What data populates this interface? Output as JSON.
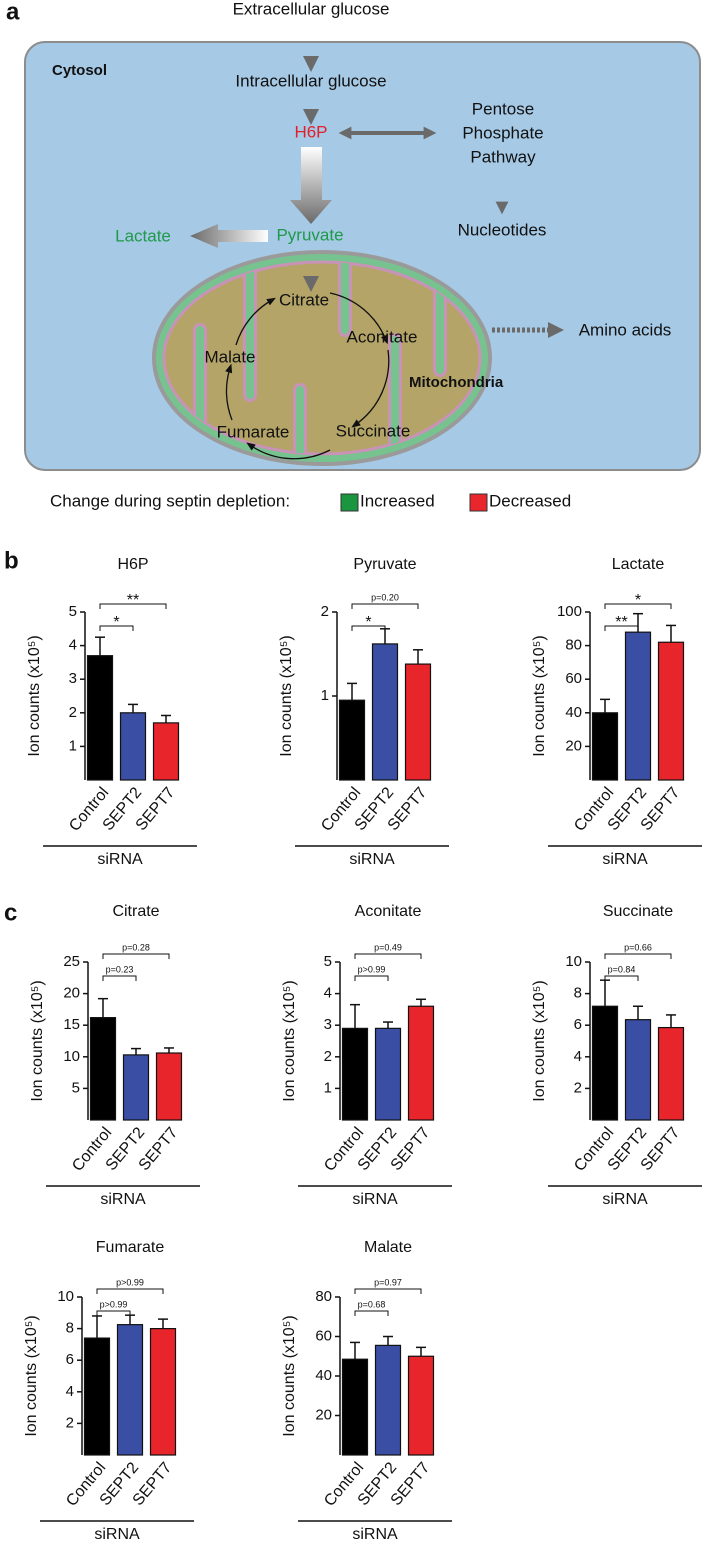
{
  "panel_labels": [
    "a",
    "b",
    "c"
  ],
  "diagram": {
    "cytosol_label": "Cytosol",
    "mitochondria_label": "Mitochondria",
    "nodes": [
      {
        "label": "Extracellular glucose"
      },
      {
        "label": "Intracellular glucose"
      },
      {
        "label": "H6P",
        "color": "#e0202a"
      },
      {
        "lines": [
          "Pentose",
          "Phosphate",
          "Pathway"
        ]
      },
      {
        "label": "Nucleotides"
      },
      {
        "label": "Lactate",
        "color": "#1f9a4a"
      },
      {
        "label": "Pyruvate",
        "color": "#1f9a4a"
      },
      {
        "label": "Citrate"
      },
      {
        "label": "Aconitate"
      },
      {
        "label": "Malate"
      },
      {
        "label": "Fumarate"
      },
      {
        "label": "Succinate"
      },
      {
        "label": "Amino acids"
      }
    ],
    "legend": {
      "title": "Change during septin depletion:",
      "items": [
        {
          "label": "Increased",
          "color": "#1a9641"
        },
        {
          "label": "Decreased",
          "color": "#e8262b"
        }
      ]
    }
  },
  "chart_data": [
    {
      "type": "bar",
      "title": "H6P",
      "y_label": "Ion counts (x10⁵)",
      "categories": [
        "Control",
        "SEPT2",
        "SEPT7"
      ],
      "values": [
        3.7,
        2.0,
        1.7
      ],
      "errors": [
        0.55,
        0.25,
        0.22
      ],
      "colors": [
        "#000000",
        "#3a4fa3",
        "#e8252a"
      ],
      "group_label": "siRNA",
      "ylim": [
        0,
        5
      ],
      "yticks": [
        1,
        2,
        3,
        4,
        5
      ],
      "comparisons": [
        {
          "from": 0,
          "to": 1,
          "label": "*"
        },
        {
          "from": 0,
          "to": 2,
          "label": "**"
        }
      ]
    },
    {
      "type": "bar",
      "title": "Pyruvate",
      "y_label": "Ion counts (x10⁵)",
      "categories": [
        "Control",
        "SEPT2",
        "SEPT7"
      ],
      "values": [
        0.95,
        1.62,
        1.38
      ],
      "errors": [
        0.2,
        0.18,
        0.17
      ],
      "colors": [
        "#000000",
        "#3a4fa3",
        "#e8252a"
      ],
      "group_label": "siRNA",
      "ylim": [
        0,
        2
      ],
      "yticks": [
        1,
        2
      ],
      "comparisons": [
        {
          "from": 0,
          "to": 1,
          "label": "*"
        },
        {
          "from": 0,
          "to": 2,
          "label": "p=0.20"
        }
      ]
    },
    {
      "type": "bar",
      "title": "Lactate",
      "y_label": "Ion counts (x10⁵)",
      "categories": [
        "Control",
        "SEPT2",
        "SEPT7"
      ],
      "values": [
        40,
        88,
        82
      ],
      "errors": [
        8,
        11,
        10
      ],
      "colors": [
        "#000000",
        "#3a4fa3",
        "#e8252a"
      ],
      "group_label": "siRNA",
      "ylim": [
        0,
        100
      ],
      "yticks": [
        20,
        40,
        60,
        80,
        100
      ],
      "comparisons": [
        {
          "from": 0,
          "to": 1,
          "label": "**"
        },
        {
          "from": 0,
          "to": 2,
          "label": "*"
        }
      ]
    },
    {
      "type": "bar",
      "title": "Citrate",
      "y_label": "Ion counts (x10⁵)",
      "categories": [
        "Control",
        "SEPT2",
        "SEPT7"
      ],
      "values": [
        16.2,
        10.3,
        10.6
      ],
      "errors": [
        3,
        1,
        0.8
      ],
      "colors": [
        "#000000",
        "#3a4fa3",
        "#e8252a"
      ],
      "group_label": "siRNA",
      "ylim": [
        0,
        25
      ],
      "yticks": [
        5,
        10,
        15,
        20,
        25
      ],
      "comparisons": [
        {
          "from": 0,
          "to": 1,
          "label": "p=0.23"
        },
        {
          "from": 0,
          "to": 2,
          "label": "p=0.28"
        }
      ]
    },
    {
      "type": "bar",
      "title": "Aconitate",
      "y_label": "Ion counts (x10⁵)",
      "categories": [
        "Control",
        "SEPT2",
        "SEPT7"
      ],
      "values": [
        2.9,
        2.9,
        3.6
      ],
      "errors": [
        0.75,
        0.2,
        0.22
      ],
      "colors": [
        "#000000",
        "#3a4fa3",
        "#e8252a"
      ],
      "group_label": "siRNA",
      "ylim": [
        0,
        5
      ],
      "yticks": [
        1,
        2,
        3,
        4,
        5
      ],
      "comparisons": [
        {
          "from": 0,
          "to": 1,
          "label": "p>0.99"
        },
        {
          "from": 0,
          "to": 2,
          "label": "p=0.49"
        }
      ]
    },
    {
      "type": "bar",
      "title": "Succinate",
      "y_label": "Ion counts (x10⁵)",
      "categories": [
        "Control",
        "SEPT2",
        "SEPT7"
      ],
      "values": [
        7.2,
        6.35,
        5.85
      ],
      "errors": [
        1.65,
        0.85,
        0.8
      ],
      "colors": [
        "#000000",
        "#3a4fa3",
        "#e8252a"
      ],
      "group_label": "siRNA",
      "ylim": [
        0,
        10
      ],
      "yticks": [
        2,
        4,
        6,
        8,
        10
      ],
      "comparisons": [
        {
          "from": 0,
          "to": 1,
          "label": "p=0.84"
        },
        {
          "from": 0,
          "to": 2,
          "label": "p=0.66"
        }
      ]
    },
    {
      "type": "bar",
      "title": "Fumarate",
      "y_label": "Ion counts (x10⁵)",
      "categories": [
        "Control",
        "SEPT2",
        "SEPT7"
      ],
      "values": [
        7.4,
        8.25,
        8.0
      ],
      "errors": [
        1.4,
        0.6,
        0.6
      ],
      "colors": [
        "#000000",
        "#3a4fa3",
        "#e8252a"
      ],
      "group_label": "siRNA",
      "ylim": [
        0,
        10
      ],
      "yticks": [
        2,
        4,
        6,
        8,
        10
      ],
      "comparisons": [
        {
          "from": 0,
          "to": 1,
          "label": "p>0.99"
        },
        {
          "from": 0,
          "to": 2,
          "label": "p>0.99"
        }
      ]
    },
    {
      "type": "bar",
      "title": "Malate",
      "y_label": "Ion counts (x10⁵)",
      "categories": [
        "Control",
        "SEPT2",
        "SEPT7"
      ],
      "values": [
        48.5,
        55.5,
        50
      ],
      "errors": [
        8.5,
        4.5,
        4.5
      ],
      "colors": [
        "#000000",
        "#3a4fa3",
        "#e8252a"
      ],
      "group_label": "siRNA",
      "ylim": [
        0,
        80
      ],
      "yticks": [
        20,
        40,
        60,
        80
      ],
      "comparisons": [
        {
          "from": 0,
          "to": 1,
          "label": "p=0.68"
        },
        {
          "from": 0,
          "to": 2,
          "label": "p=0.97"
        }
      ]
    }
  ]
}
